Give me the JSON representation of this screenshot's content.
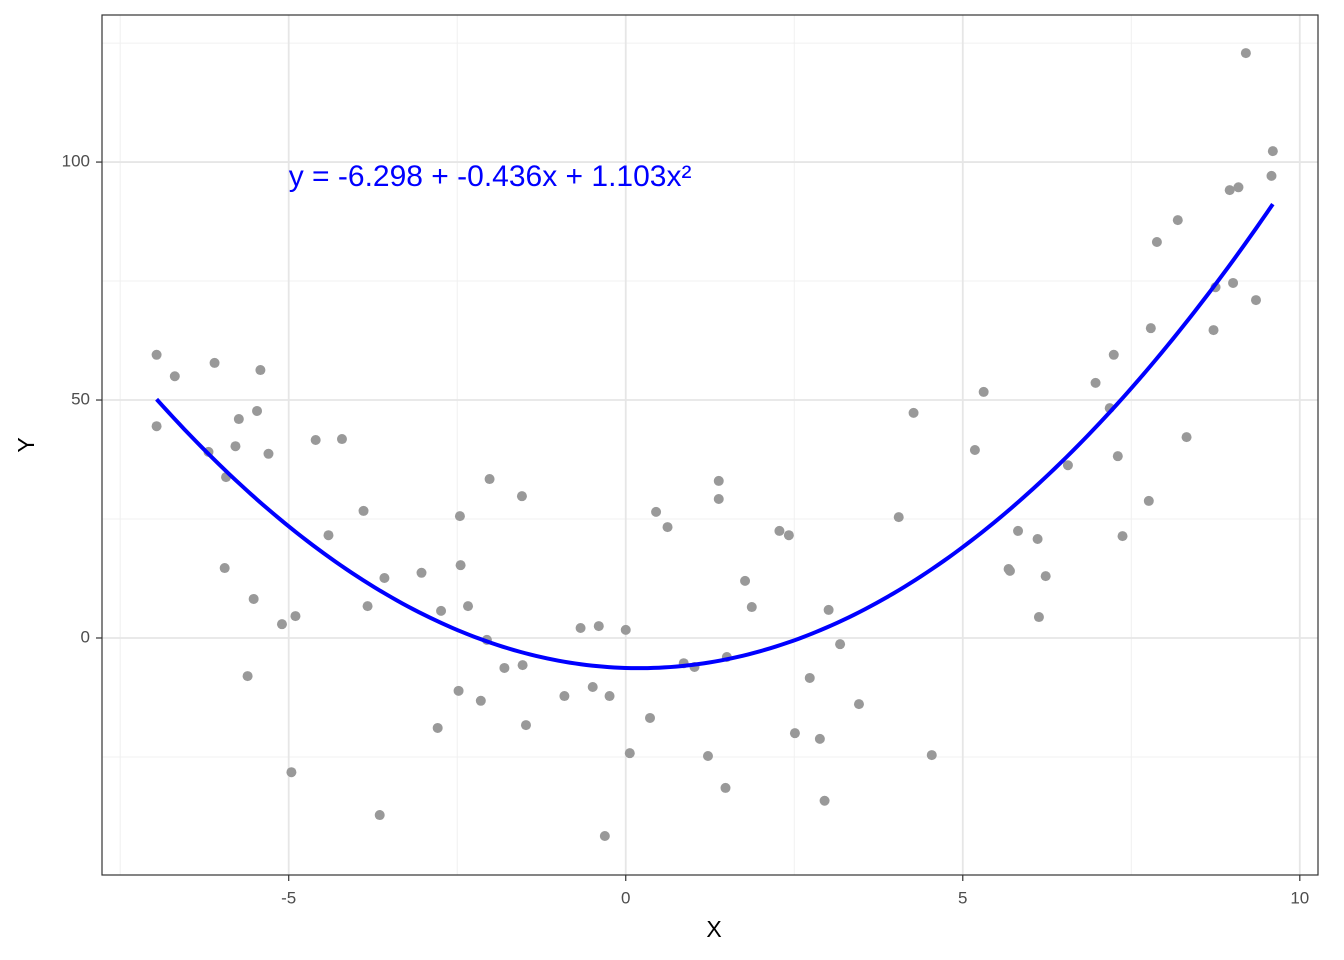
{
  "chart_data": {
    "type": "scatter",
    "x_label": "X",
    "y_label": "Y",
    "annotation": "y = -6.298 + -0.436x + 1.103x²",
    "annotation_color": "#0000ff",
    "xlim": [
      -7.77,
      10.27
    ],
    "ylim": [
      -49.8,
      130.9
    ],
    "xticks": [
      -5,
      0,
      5,
      10
    ],
    "yticks": [
      0,
      50,
      100
    ],
    "minor_xticks": [
      -7.5,
      -2.5,
      2.5,
      7.5
    ],
    "minor_yticks": [
      -25,
      25,
      75,
      125
    ],
    "grid": true,
    "point_color": "#999999",
    "x": [
      -6.96,
      -6.96,
      -6.69,
      -6.1,
      -6.19,
      -5.93,
      -5.95,
      -5.74,
      -5.79,
      -5.47,
      -5.42,
      -5.3,
      -5.52,
      -5.61,
      -5.1,
      -4.9,
      -4.96,
      -4.6,
      -4.21,
      -4.41,
      -3.89,
      -3.83,
      -3.58,
      -3.65,
      -3.03,
      -2.74,
      -2.79,
      -2.46,
      -2.45,
      -2.34,
      -2.48,
      -2.15,
      -2.06,
      -2.02,
      -1.8,
      -1.54,
      -1.53,
      -1.48,
      -0.91,
      -0.67,
      -0.4,
      -0.49,
      -0.24,
      -0.31,
      0.0,
      0.06,
      0.36,
      0.45,
      0.62,
      0.86,
      1.02,
      1.22,
      1.38,
      1.38,
      1.5,
      1.48,
      1.77,
      1.87,
      2.28,
      2.42,
      2.51,
      2.73,
      2.88,
      3.01,
      2.95,
      3.18,
      3.46,
      4.05,
      4.27,
      4.54,
      5.18,
      5.31,
      5.68,
      5.7,
      5.82,
      6.11,
      6.13,
      6.23,
      6.56,
      6.97,
      7.18,
      7.24,
      7.3,
      7.37,
      7.76,
      7.79,
      7.88,
      8.19,
      8.32,
      8.72,
      8.75,
      8.96,
      9.09,
      9.01,
      9.2,
      9.35,
      9.6,
      9.58
    ],
    "values": [
      59.5,
      44.5,
      55.0,
      57.8,
      39.1,
      33.8,
      14.7,
      46.0,
      40.3,
      47.7,
      56.3,
      38.7,
      8.2,
      -8.0,
      2.9,
      4.6,
      -28.2,
      41.6,
      41.8,
      21.6,
      26.7,
      6.7,
      12.6,
      -37.2,
      13.7,
      5.7,
      -18.9,
      25.6,
      15.3,
      6.7,
      -11.1,
      -13.2,
      -0.4,
      33.4,
      -6.3,
      29.8,
      -5.7,
      -18.3,
      -12.2,
      2.1,
      2.5,
      -10.3,
      -12.2,
      -41.6,
      1.7,
      -24.2,
      -16.8,
      26.5,
      23.3,
      -5.3,
      -6.1,
      -24.8,
      33.0,
      29.2,
      -4.0,
      -31.5,
      12.0,
      6.5,
      22.5,
      21.6,
      -20.0,
      -8.4,
      -21.2,
      5.9,
      -34.2,
      -1.3,
      -13.9,
      25.4,
      47.3,
      -24.6,
      39.5,
      51.7,
      14.5,
      14.1,
      22.5,
      20.8,
      4.4,
      13.0,
      36.3,
      53.6,
      48.3,
      59.5,
      38.2,
      21.4,
      28.8,
      65.1,
      83.2,
      87.8,
      42.2,
      64.7,
      73.7,
      94.1,
      94.7,
      74.6,
      122.9,
      71.0,
      102.3,
      97.1
    ],
    "fit": {
      "color": "#0000ff",
      "coefficients": [
        -6.298,
        -0.436,
        1.103
      ],
      "xrange": [
        -6.96,
        9.6
      ]
    }
  }
}
